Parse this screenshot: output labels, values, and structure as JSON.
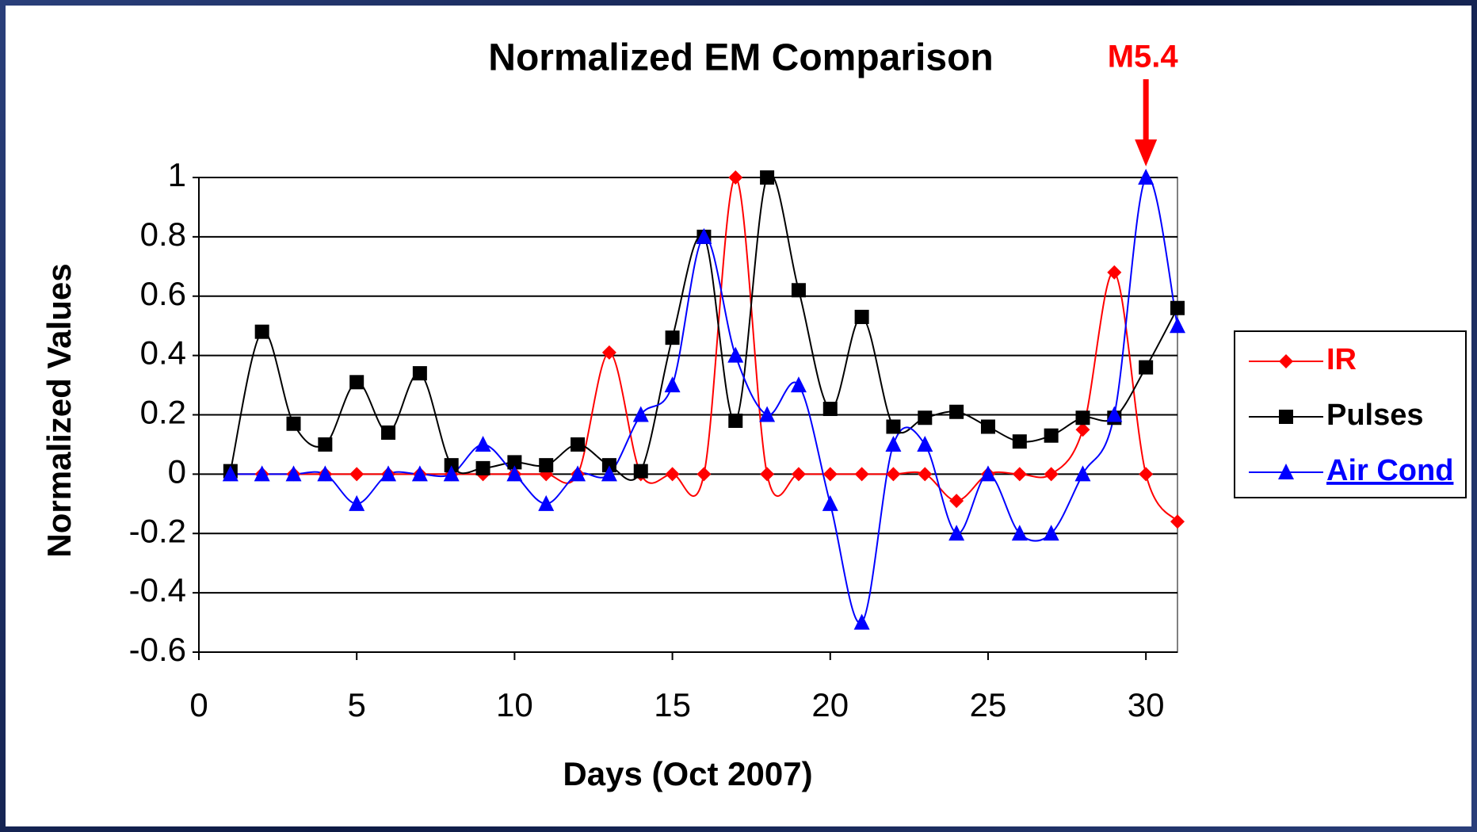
{
  "chart_data": {
    "type": "line",
    "title": "Normalized EM Comparison",
    "x_label": "Days (Oct 2007)",
    "y_label": "Normalized Values",
    "x": [
      1,
      2,
      3,
      4,
      5,
      6,
      7,
      8,
      9,
      10,
      11,
      12,
      13,
      14,
      15,
      16,
      17,
      18,
      19,
      20,
      21,
      22,
      23,
      24,
      25,
      26,
      27,
      28,
      29,
      30,
      31
    ],
    "series": [
      {
        "name": "IR",
        "color": "#ff0000",
        "marker": "diamond",
        "values": [
          0,
          0,
          0,
          0,
          0,
          0,
          0,
          0,
          0,
          0,
          0,
          0,
          0.41,
          0,
          0,
          0,
          1,
          0,
          0,
          0,
          0,
          0,
          0,
          -0.09,
          0,
          0,
          0,
          0.15,
          0.68,
          0,
          -0.16
        ]
      },
      {
        "name": "Pulses",
        "color": "#000000",
        "marker": "square",
        "values": [
          0.01,
          0.48,
          0.17,
          0.1,
          0.31,
          0.14,
          0.34,
          0.03,
          0.02,
          0.04,
          0.03,
          0.1,
          0.03,
          0.01,
          0.46,
          0.8,
          0.18,
          1,
          0.62,
          0.22,
          0.53,
          0.16,
          0.19,
          0.21,
          0.16,
          0.11,
          0.13,
          0.19,
          0.19,
          0.36,
          0.56
        ]
      },
      {
        "name": "Air Cond",
        "color": "#0000ff",
        "marker": "triangle",
        "values": [
          0,
          0,
          0,
          0,
          -0.1,
          0,
          0,
          0,
          0.1,
          0,
          -0.1,
          0,
          0,
          0.2,
          0.3,
          0.8,
          0.4,
          0.2,
          0.3,
          -0.1,
          -0.5,
          0.1,
          0.1,
          -0.2,
          0,
          -0.2,
          -0.2,
          0,
          0.2,
          1,
          0.5
        ]
      }
    ],
    "xlim": [
      0,
      31
    ],
    "xticks": [
      0,
      5,
      10,
      15,
      20,
      25,
      30
    ],
    "ylim": [
      -0.6,
      1
    ],
    "yticks": [
      -0.6,
      -0.4,
      -0.2,
      0,
      0.2,
      0.4,
      0.6,
      0.8,
      1
    ],
    "grid": true,
    "legend": "right",
    "annotations": [
      {
        "text": "M5.4",
        "x": 30,
        "color": "#ff0000"
      }
    ]
  }
}
